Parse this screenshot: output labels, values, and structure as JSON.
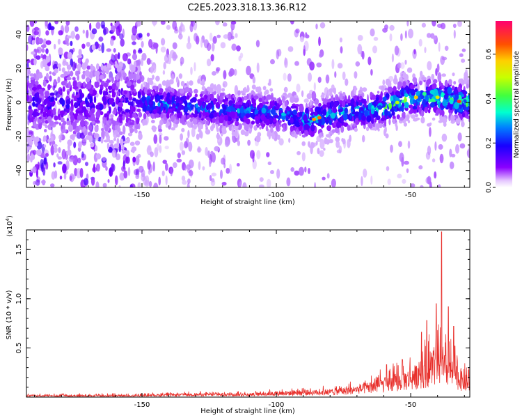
{
  "title": "C2E5.2023.318.13.36.R12",
  "chart_data": [
    {
      "type": "heatmap",
      "name": "spectrogram",
      "xlabel": "Height of straight line (km)",
      "ylabel": "Frequency (Hz)",
      "xlim": [
        -193,
        -28
      ],
      "ylim": [
        -50,
        48
      ],
      "xticks": [
        -150,
        -100,
        -50
      ],
      "yticks": [
        -40,
        -20,
        0,
        20,
        40
      ],
      "colorbar": {
        "label": "Normalized spectral amplitude",
        "range": [
          0.0,
          0.75
        ],
        "ticks": [
          0.0,
          0.2,
          0.4,
          0.6
        ]
      },
      "ridge": [
        {
          "x": -150,
          "y": 0
        },
        {
          "x": -120,
          "y": -4
        },
        {
          "x": -100,
          "y": -6
        },
        {
          "x": -88,
          "y": -11
        },
        {
          "x": -80,
          "y": -7
        },
        {
          "x": -70,
          "y": -5
        },
        {
          "x": -60,
          "y": -3
        },
        {
          "x": -50,
          "y": 3
        },
        {
          "x": -40,
          "y": 3
        },
        {
          "x": -30,
          "y": 0
        }
      ]
    },
    {
      "type": "line",
      "name": "snr",
      "xlabel": "Height of straight line (km)",
      "ylabel": "SNR (10 * v/v)",
      "multiplier": "(x10",
      "multiplier_exp": "4",
      "multiplier_close": ")",
      "xlim": [
        -193,
        -28
      ],
      "ylim": [
        0,
        1.7
      ],
      "xticks": [
        -150,
        -100,
        -50
      ],
      "yticks": [
        0.5,
        1.0,
        1.5
      ],
      "series": [
        {
          "name": "SNR",
          "color": "#e8302c",
          "envelope": [
            {
              "x": -193,
              "y": 0.04
            },
            {
              "x": -150,
              "y": 0.04
            },
            {
              "x": -130,
              "y": 0.06
            },
            {
              "x": -110,
              "y": 0.06
            },
            {
              "x": -95,
              "y": 0.1
            },
            {
              "x": -80,
              "y": 0.12
            },
            {
              "x": -70,
              "y": 0.18
            },
            {
              "x": -60,
              "y": 0.3
            },
            {
              "x": -50,
              "y": 0.45
            },
            {
              "x": -45,
              "y": 0.6
            },
            {
              "x": -40,
              "y": 0.75
            },
            {
              "x": -35,
              "y": 0.6
            },
            {
              "x": -30,
              "y": 0.35
            }
          ],
          "peaks": [
            {
              "x": -38.5,
              "y": 1.68
            },
            {
              "x": -36,
              "y": 0.92
            },
            {
              "x": -34,
              "y": 0.72
            },
            {
              "x": -40.5,
              "y": 0.95
            },
            {
              "x": -44,
              "y": 0.78
            },
            {
              "x": -46,
              "y": 0.66
            },
            {
              "x": -53,
              "y": 0.38
            },
            {
              "x": -59,
              "y": 0.33
            }
          ]
        }
      ]
    }
  ],
  "colors": {
    "colormap": [
      "#ffffff",
      "#8a00ff",
      "#3a00ff",
      "#0000ff",
      "#00c8ff",
      "#00ff90",
      "#8aff00",
      "#ffff00",
      "#ff8000",
      "#ff0000",
      "#ff0066"
    ],
    "line": "#e8302c"
  }
}
